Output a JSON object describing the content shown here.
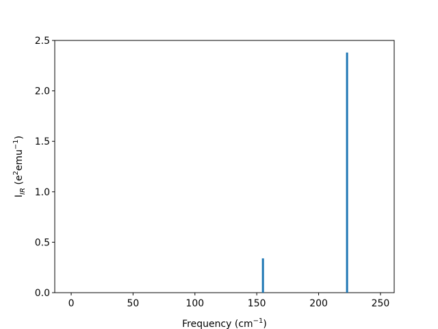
{
  "chart_data": {
    "type": "bar",
    "color": "#1f77b4",
    "x": [
      155,
      223
    ],
    "values": [
      0.34,
      2.38
    ],
    "xlim": [
      -13.3,
      261.1
    ],
    "ylim": [
      0,
      2.5
    ],
    "xticks": [
      0,
      50,
      100,
      150,
      200,
      250
    ],
    "yticks": [
      {
        "value": 0,
        "label": "0.0"
      },
      0.5,
      {
        "value": 1,
        "label": "1.0"
      },
      1.5,
      {
        "value": 2,
        "label": "2.0"
      },
      2.5
    ],
    "xlabel": [
      {
        "text": "Frequency (cm"
      },
      {
        "text": "−1",
        "style": "sup"
      },
      {
        "text": ")"
      }
    ],
    "ylabel": [
      {
        "text": "I"
      },
      {
        "text": "IR",
        "style": "sub"
      },
      {
        "text": " (e"
      },
      {
        "text": "2",
        "style": "sup"
      },
      {
        "text": "emu"
      },
      {
        "text": "−1",
        "style": "sup"
      },
      {
        "text": ")"
      }
    ]
  }
}
